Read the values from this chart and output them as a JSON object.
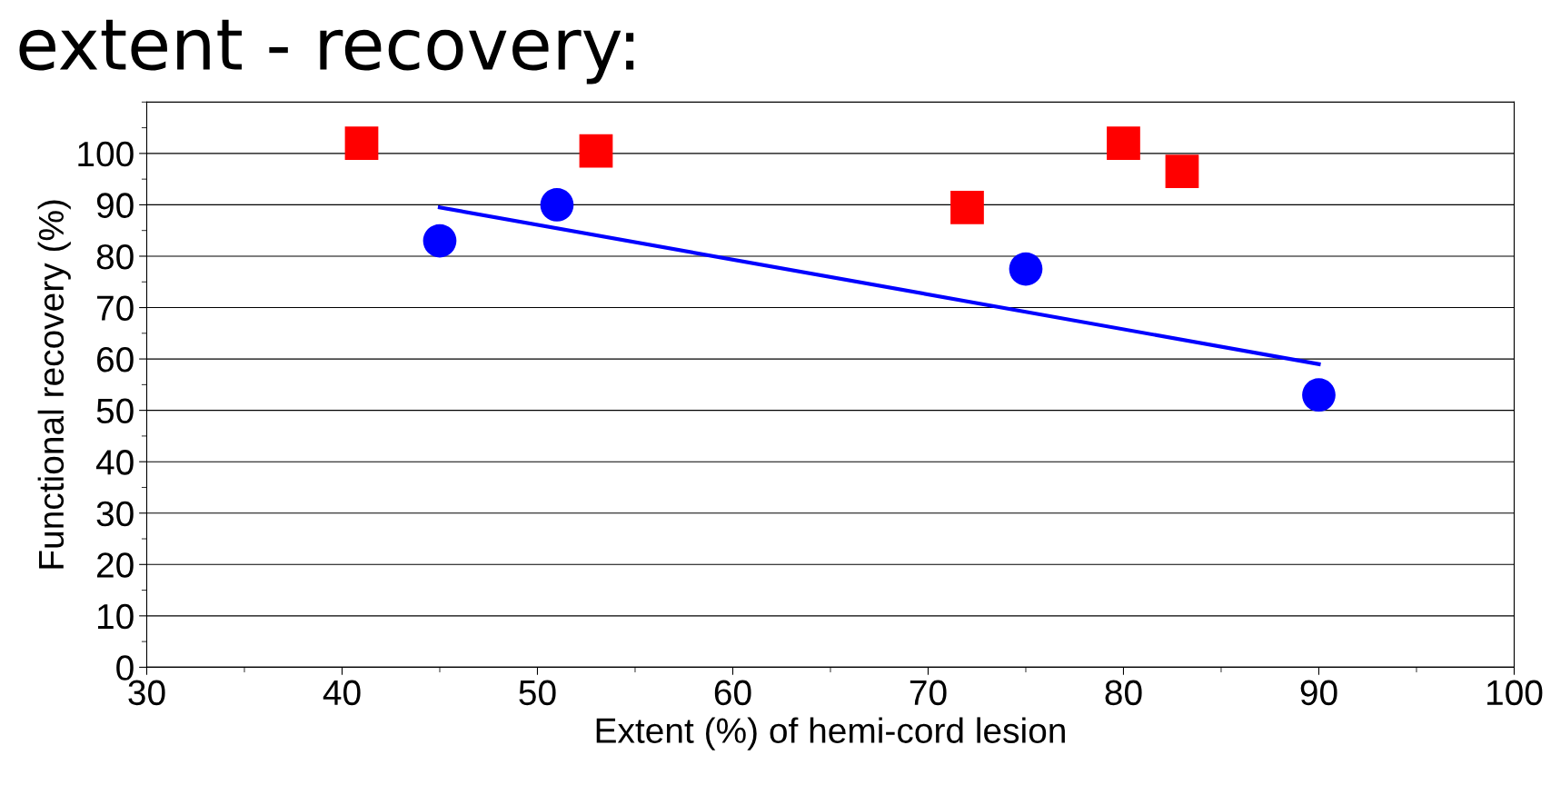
{
  "chart_data": {
    "type": "scatter",
    "title": "extent - recovery:",
    "xlabel": "Extent (%) of hemi-cord lesion",
    "ylabel": "Functional recovery (%)",
    "series": [
      {
        "marker": "square",
        "color": "#ff0000",
        "x": [
          41,
          53,
          72,
          80,
          83
        ],
        "values": [
          102,
          100.5,
          89.5,
          102,
          96.5
        ]
      },
      {
        "marker": "circle",
        "color": "#0000ff",
        "x": [
          45,
          51,
          75,
          90
        ],
        "values": [
          83,
          90,
          77.5,
          53
        ]
      },
      {
        "type": "line",
        "marker": "none",
        "color": "#0000ff",
        "x": [
          45,
          90
        ],
        "values": [
          89.5,
          59
        ]
      }
    ],
    "xlim": [
      30,
      100
    ],
    "xticks": [
      30,
      40,
      50,
      60,
      70,
      80,
      90,
      100
    ],
    "ylim": [
      0,
      110
    ],
    "yticks": [
      0,
      10,
      20,
      30,
      40,
      50,
      60,
      70,
      80,
      90,
      100
    ],
    "grid": "y",
    "legend": false
  }
}
